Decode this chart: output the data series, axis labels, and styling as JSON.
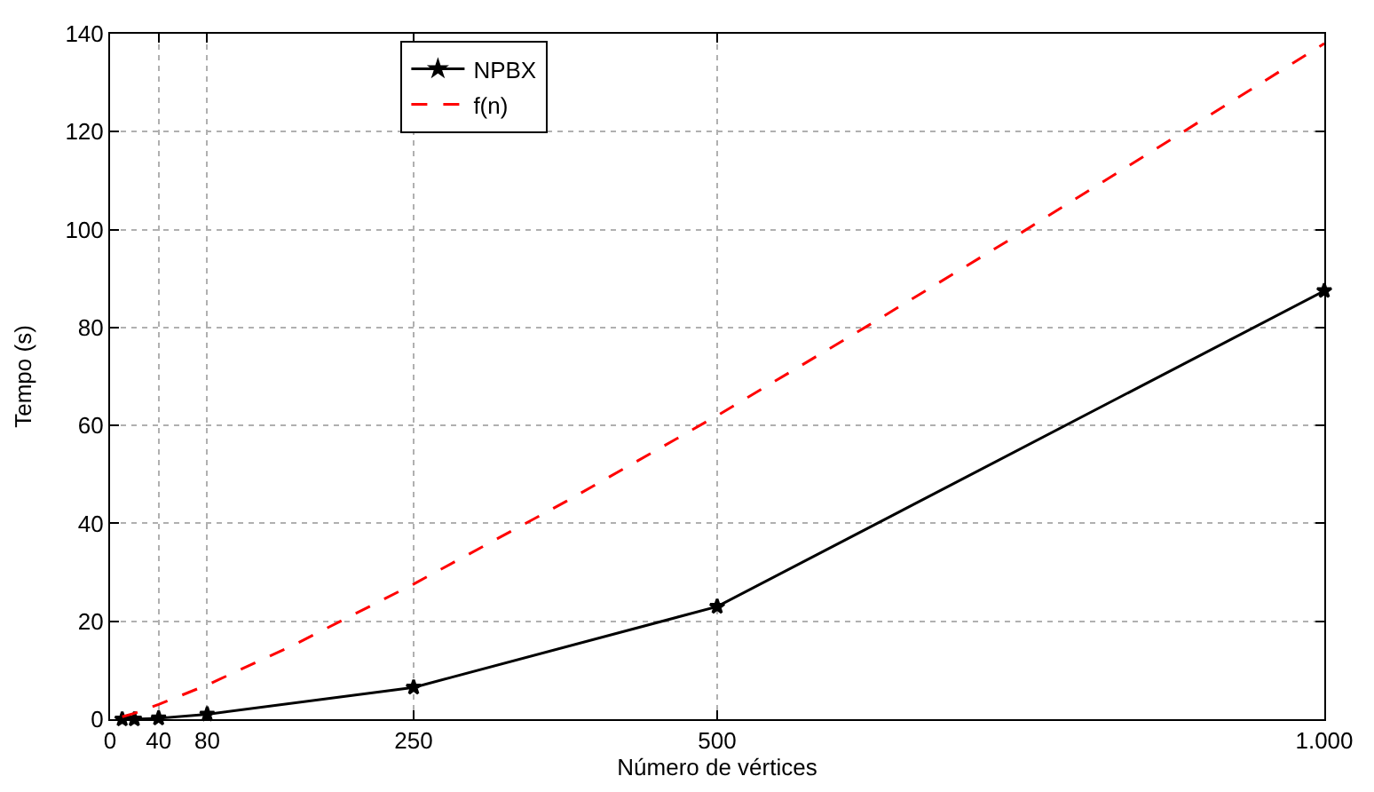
{
  "chart_data": {
    "type": "line",
    "xlabel": "Número de vértices",
    "ylabel": "Tempo (s)",
    "xlim": [
      0,
      1000
    ],
    "xticks": [
      0,
      40,
      80,
      250,
      500,
      {
        "value": 1000,
        "label": "1.000"
      }
    ],
    "ylim": [
      0,
      140
    ],
    "yticks": [
      0,
      20,
      40,
      60,
      80,
      100,
      120,
      140
    ],
    "grid": true,
    "legend": "top",
    "series": [
      {
        "name": "NPBX",
        "color": "#000000",
        "marker": "star",
        "line_style": "solid",
        "x": [
          10,
          20,
          40,
          80,
          250,
          500,
          1000
        ],
        "values": [
          0,
          0,
          0.2,
          1,
          6.5,
          23,
          87.5
        ]
      },
      {
        "name": "f(n)",
        "color": "#ff0000",
        "marker": "none",
        "line_style": "dashed",
        "x": [
          10,
          20,
          40,
          80,
          150,
          250,
          375,
          500,
          625,
          750,
          875,
          1000
        ],
        "values": [
          0.5,
          1.2,
          3,
          7,
          15,
          27.6,
          44.4,
          62,
          80.5,
          99.3,
          118.6,
          138
        ]
      }
    ]
  }
}
